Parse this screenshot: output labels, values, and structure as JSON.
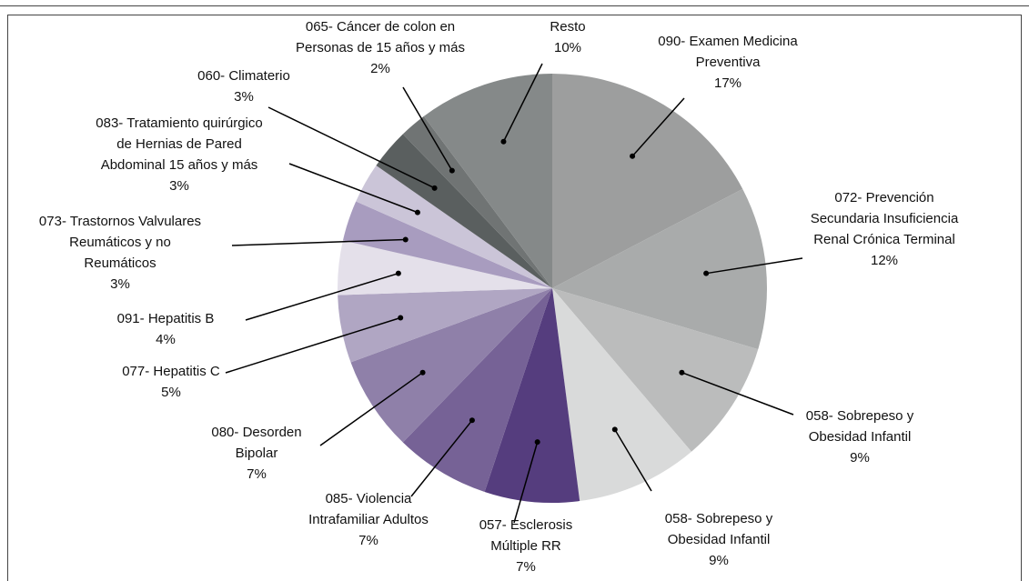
{
  "chart_data": {
    "type": "pie",
    "categories": [
      "090- Examen Medicina\nPreventiva",
      "072- Prevención\nSecundaria Insuficiencia\nRenal Crónica Terminal",
      "058- Sobrepeso y\nObesidad Infantil",
      "058- Sobrepeso y\nObesidad Infantil",
      "057- Esclerosis\nMúltiple RR",
      "085- Violencia\nIntrafamiliar Adultos",
      "080- Desorden\nBipolar",
      "077- Hepatitis C",
      "091- Hepatitis B",
      "073- Trastornos Valvulares\nReumáticos y no\nReumáticos",
      "083- Tratamiento quirúrgico\nde Hernias de Pared\nAbdominal 15 años y más",
      "060- Climaterio",
      "065- Cáncer de colon en\nPersonas de 15 años y más",
      "Resto"
    ],
    "values": [
      17,
      12,
      9,
      9,
      7,
      7,
      7,
      5,
      4,
      3,
      3,
      3,
      2,
      10
    ],
    "value_labels": [
      "17%",
      "12%",
      "9%",
      "9%",
      "7%",
      "7%",
      "7%",
      "5%",
      "4%",
      "3%",
      "3%",
      "3%",
      "2%",
      "10%"
    ],
    "colors": [
      "#9d9e9e",
      "#a9abab",
      "#bbbcbc",
      "#d9dada",
      "#553d7e",
      "#766296",
      "#8f80a9",
      "#b0a6c3",
      "#e4e0ea",
      "#a89cbf",
      "#cbc5d8",
      "#5a5f5f",
      "#707474",
      "#858989"
    ]
  }
}
